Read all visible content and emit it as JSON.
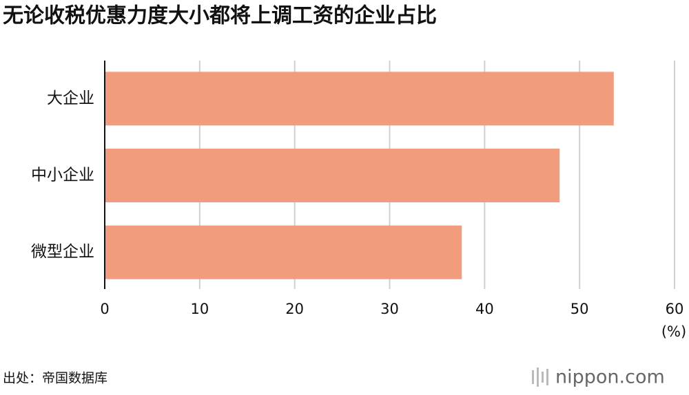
{
  "chart_data": {
    "type": "bar",
    "orientation": "horizontal",
    "title": "无论收税优惠力度大小都将上调工资的企业占比",
    "categories": [
      "大企业",
      "中小企业",
      "微型企业"
    ],
    "values": [
      53.6,
      47.9,
      37.6
    ],
    "color": "#f19c7c",
    "xlim": [
      0,
      60
    ],
    "xticks": [
      0,
      10,
      20,
      30,
      40,
      50,
      60
    ],
    "x_unit": "(%)",
    "grid": true,
    "source": "出处：帝国数据库",
    "logo": "nippon.com"
  }
}
